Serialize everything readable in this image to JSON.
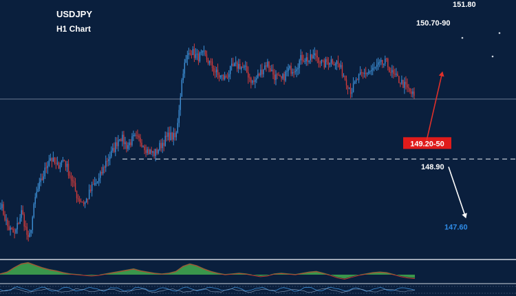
{
  "chart_data": {
    "type": "candlestick",
    "title": "USDJPY",
    "subtitle": "H1 Chart",
    "colors": {
      "background": "#0a1f3d",
      "bull": "#3d8fd6",
      "bear": "#d23c3c",
      "osc_fill": "#3fa34d",
      "osc_line": "#c8382f",
      "target_blue": "#2f8be6",
      "callout_red": "#e01b1b",
      "text": "#ffffff"
    },
    "price_range": [
      147.0,
      151.95
    ],
    "ohlc_path": [
      148.05,
      147.6,
      147.45,
      147.9,
      147.3,
      148.2,
      148.55,
      148.95,
      148.75,
      148.9,
      148.55,
      148.15,
      148.05,
      148.35,
      148.5,
      148.85,
      149.05,
      149.35,
      149.15,
      149.3,
      149.25,
      149.05,
      149.0,
      149.2,
      149.35,
      149.3,
      150.6,
      151.0,
      150.85,
      150.9,
      150.7,
      150.5,
      150.45,
      150.65,
      150.7,
      150.6,
      150.35,
      150.55,
      150.75,
      150.5,
      150.4,
      150.6,
      150.65,
      150.85,
      150.8,
      150.9,
      150.7,
      150.8,
      150.75,
      150.5,
      150.2,
      150.45,
      150.55,
      150.6,
      150.7,
      150.75,
      150.5,
      150.4,
      150.25,
      150.1
    ],
    "levels": [
      {
        "value": 151.8,
        "label": "151.80"
      },
      {
        "value": 150.7,
        "label": "150.70-90"
      },
      {
        "value": 149.2,
        "label": "149.20-50",
        "style": "callout"
      },
      {
        "value": 148.9,
        "label": "148.90",
        "style": "dashed"
      },
      {
        "value": 147.6,
        "label": "147.60",
        "style": "target"
      }
    ],
    "current_price": 150.05,
    "arrows": [
      {
        "from": 149.25,
        "to": 150.7,
        "color": "red"
      },
      {
        "from": 148.75,
        "to": 147.75,
        "color": "white"
      }
    ],
    "oscillator": {
      "values": [
        0.2,
        0.5,
        1.2,
        1.8,
        2.0,
        1.6,
        1.2,
        0.9,
        0.7,
        0.4,
        0.2,
        0.1,
        0.0,
        -0.1,
        0.0,
        0.2,
        0.4,
        0.6,
        0.8,
        1.0,
        0.7,
        0.5,
        0.3,
        0.2,
        0.3,
        0.6,
        1.4,
        1.8,
        1.5,
        1.0,
        0.6,
        0.3,
        0.1,
        0.2,
        0.3,
        0.2,
        0.0,
        -0.2,
        -0.1,
        0.2,
        0.3,
        0.2,
        0.1,
        0.3,
        0.5,
        0.6,
        0.3,
        0.0,
        -0.4,
        -0.6,
        -0.3,
        0.0,
        0.2,
        0.4,
        0.5,
        0.4,
        0.1,
        -0.2,
        -0.4,
        -0.5
      ],
      "range": [
        -1.2,
        2.2
      ]
    },
    "grid": false
  }
}
